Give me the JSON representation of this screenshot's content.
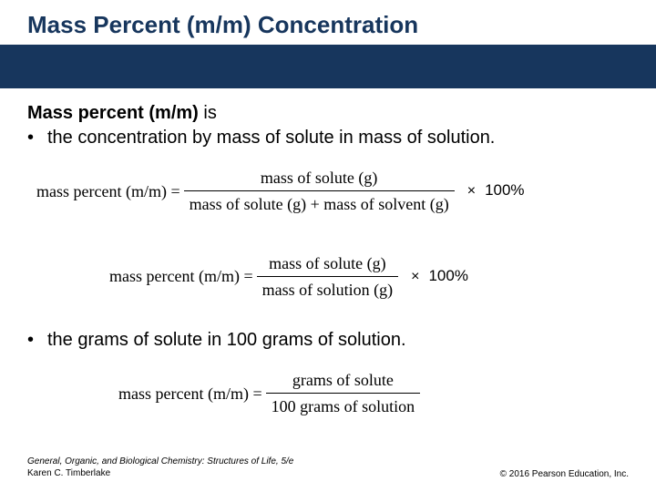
{
  "colors": {
    "banner": "#17365d",
    "title": "#17365d",
    "text": "#000000",
    "background": "#ffffff"
  },
  "title": "Mass Percent (m/m) Concentration",
  "intro": {
    "bold": "Mass percent (m/m)",
    "rest": " is"
  },
  "bullet1": "the concentration by mass of solute in mass of solution.",
  "formula1": {
    "lhs": "mass percent (m/m) =",
    "num": "mass of solute (g)",
    "den": "mass of solute (g) + mass of solvent (g)",
    "times": "×",
    "pct": "100%"
  },
  "formula2": {
    "lhs": "mass percent (m/m) =",
    "num": "mass of solute (g)",
    "den": "mass of solution (g)",
    "times": "×",
    "pct": "100%"
  },
  "bullet2": "the grams of solute in 100 grams of solution.",
  "formula3": {
    "lhs": "mass percent (m/m) =",
    "num": "grams of solute",
    "den": "100 grams of solution"
  },
  "footer": {
    "book": "General, Organic, and Biological Chemistry: Structures of Life, 5/e",
    "author": "Karen C. Timberlake",
    "copyright": "© 2016 Pearson Education, Inc."
  }
}
